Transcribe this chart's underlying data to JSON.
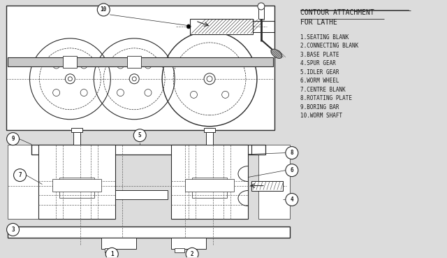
{
  "title": "CONTOUR ATTACHMENT\nFOR LATHE",
  "legend": [
    "1.SEATING BLANK",
    "2.CONNECTING BLANK",
    "3.BASE PLATE",
    "4.SPUR GEAR",
    "5.IDLER GEAR",
    "6.WORM WHEEL",
    "7.CENTRE BLANK",
    "8.ROTATING PLATE",
    "9.BORING BAR",
    "10.WORM SHAFT"
  ],
  "bg_color": "#dcdcdc",
  "line_color": "#2a2a2a",
  "text_color": "#1a1a1a",
  "dash_color": "#666666"
}
